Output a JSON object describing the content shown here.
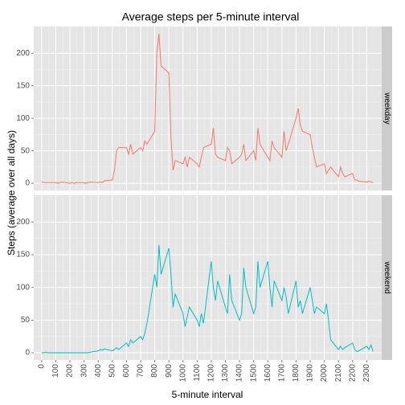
{
  "chart_data": {
    "type": "line",
    "facet": true,
    "grid": true,
    "title": "Average steps per 5-minute interval",
    "x_label": "5-minute interval",
    "y_label": "Steps (average over all days)",
    "x": [
      0,
      15,
      30,
      45,
      100,
      115,
      130,
      145,
      200,
      215,
      230,
      245,
      300,
      315,
      330,
      345,
      400,
      415,
      430,
      445,
      500,
      515,
      530,
      545,
      600,
      615,
      630,
      645,
      700,
      715,
      730,
      745,
      800,
      815,
      830,
      845,
      900,
      915,
      930,
      945,
      1000,
      1015,
      1030,
      1045,
      1100,
      1115,
      1130,
      1145,
      1200,
      1215,
      1230,
      1245,
      1300,
      1315,
      1330,
      1345,
      1400,
      1415,
      1430,
      1445,
      1500,
      1515,
      1530,
      1545,
      1600,
      1615,
      1630,
      1645,
      1700,
      1715,
      1730,
      1745,
      1800,
      1815,
      1830,
      1845,
      1900,
      1915,
      1930,
      1945,
      2000,
      2015,
      2030,
      2045,
      2100,
      2115,
      2130,
      2145,
      2200,
      2215,
      2230,
      2245,
      2300,
      2315,
      2330,
      2345
    ],
    "series": [
      {
        "name": "weekday",
        "color": "#F8766D",
        "values": [
          2,
          1,
          1,
          1,
          1,
          0,
          1,
          2,
          0,
          1,
          0,
          1,
          1,
          0,
          1,
          2,
          1,
          2,
          1,
          4,
          5,
          20,
          50,
          55,
          55,
          45,
          60,
          45,
          55,
          50,
          65,
          60,
          80,
          200,
          230,
          180,
          170,
          70,
          20,
          35,
          30,
          40,
          25,
          40,
          30,
          25,
          40,
          55,
          60,
          85,
          45,
          40,
          35,
          55,
          50,
          30,
          40,
          45,
          60,
          35,
          50,
          35,
          85,
          60,
          40,
          35,
          65,
          55,
          40,
          80,
          50,
          60,
          100,
          115,
          90,
          80,
          75,
          55,
          40,
          25,
          30,
          15,
          20,
          25,
          10,
          25,
          15,
          10,
          15,
          5,
          5,
          3,
          2,
          3,
          2,
          1
        ]
      },
      {
        "name": "weekend",
        "color": "#00BFC4",
        "values": [
          0,
          0,
          1,
          0,
          0,
          0,
          0,
          0,
          0,
          0,
          0,
          0,
          0,
          0,
          0,
          1,
          3,
          5,
          4,
          6,
          3,
          5,
          8,
          5,
          15,
          10,
          20,
          15,
          25,
          20,
          30,
          45,
          120,
          100,
          165,
          120,
          160,
          120,
          70,
          90,
          60,
          40,
          55,
          70,
          50,
          40,
          60,
          45,
          140,
          100,
          80,
          110,
          70,
          60,
          120,
          80,
          50,
          60,
          130,
          100,
          60,
          70,
          140,
          100,
          140,
          100,
          70,
          110,
          80,
          100,
          85,
          60,
          110,
          70,
          80,
          60,
          100,
          80,
          60,
          70,
          60,
          75,
          50,
          20,
          5,
          10,
          5,
          8,
          15,
          5,
          2,
          3,
          10,
          5,
          12,
          2
        ]
      }
    ],
    "xlim": [
      -56,
      2406
    ],
    "xticks": [
      0,
      100,
      200,
      300,
      400,
      500,
      600,
      700,
      800,
      900,
      1000,
      1100,
      1200,
      1300,
      1400,
      1500,
      1600,
      1700,
      1800,
      1900,
      2000,
      2100,
      2200,
      2300
    ],
    "ylim": [
      -11,
      241
    ],
    "yticks": [
      0,
      50,
      100,
      150,
      200
    ]
  }
}
